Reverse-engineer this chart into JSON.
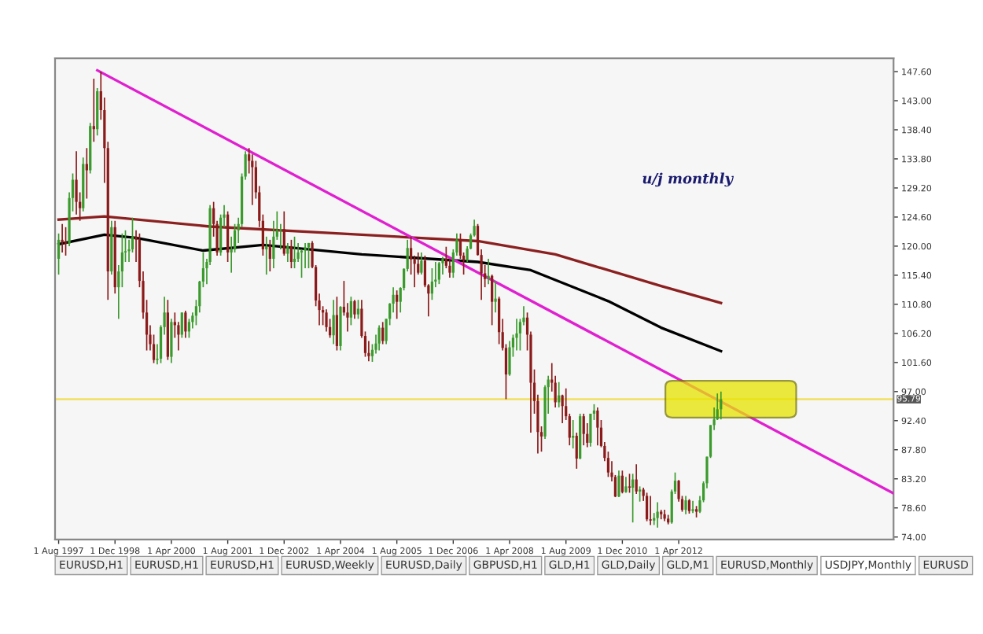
{
  "chart_data": {
    "type": "candlestick",
    "x": [
      "1997-08",
      "1997-09",
      "1997-10",
      "1997-11",
      "1997-12",
      "1998-01",
      "1998-02",
      "1998-03",
      "1998-04",
      "1998-05",
      "1998-06",
      "1998-07",
      "1998-08",
      "1998-09",
      "1998-10",
      "1998-11",
      "1998-12",
      "1999-01",
      "1999-02",
      "1999-03",
      "1999-04",
      "1999-05",
      "1999-06",
      "1999-07",
      "1999-08",
      "1999-09",
      "1999-10",
      "1999-11",
      "1999-12",
      "2000-01",
      "2000-02",
      "2000-03",
      "2000-04",
      "2000-05",
      "2000-06",
      "2000-07",
      "2000-08",
      "2000-09",
      "2000-10",
      "2000-11",
      "2000-12",
      "2001-01",
      "2001-02",
      "2001-03",
      "2001-04",
      "2001-05",
      "2001-06",
      "2001-07",
      "2001-08",
      "2001-09",
      "2001-10",
      "2001-11",
      "2001-12",
      "2002-01",
      "2002-02",
      "2002-03",
      "2002-04",
      "2002-05",
      "2002-06",
      "2002-07",
      "2002-08",
      "2002-09",
      "2002-10",
      "2002-11",
      "2002-12",
      "2003-01",
      "2003-02",
      "2003-03",
      "2003-04",
      "2003-05",
      "2003-06",
      "2003-07",
      "2003-08",
      "2003-09",
      "2003-10",
      "2003-11",
      "2003-12",
      "2004-01",
      "2004-02",
      "2004-03",
      "2004-04",
      "2004-05",
      "2004-06",
      "2004-07",
      "2004-08",
      "2004-09",
      "2004-10",
      "2004-11",
      "2004-12",
      "2005-01",
      "2005-02",
      "2005-03",
      "2005-04",
      "2005-05",
      "2005-06",
      "2005-07",
      "2005-08",
      "2005-09",
      "2005-10",
      "2005-11",
      "2005-12",
      "2006-01",
      "2006-02",
      "2006-03",
      "2006-04",
      "2006-05",
      "2006-06",
      "2006-07",
      "2006-08",
      "2006-09",
      "2006-10",
      "2006-11",
      "2006-12",
      "2007-01",
      "2007-02",
      "2007-03",
      "2007-04",
      "2007-05",
      "2007-06",
      "2007-07",
      "2007-08",
      "2007-09",
      "2007-10",
      "2007-11",
      "2007-12",
      "2008-01",
      "2008-02",
      "2008-03",
      "2008-04",
      "2008-05",
      "2008-06",
      "2008-07",
      "2008-08",
      "2008-09",
      "2008-10",
      "2008-11",
      "2008-12",
      "2009-01",
      "2009-02",
      "2009-03",
      "2009-04",
      "2009-05",
      "2009-06",
      "2009-07",
      "2009-08",
      "2009-09",
      "2009-10",
      "2009-11",
      "2009-12",
      "2010-01",
      "2010-02",
      "2010-03",
      "2010-04",
      "2010-05",
      "2010-06",
      "2010-07",
      "2010-08",
      "2010-09",
      "2010-10",
      "2010-11",
      "2010-12",
      "2011-01",
      "2011-02",
      "2011-03",
      "2011-04",
      "2011-05",
      "2011-06",
      "2011-07",
      "2011-08",
      "2011-09",
      "2011-10",
      "2011-11",
      "2011-12",
      "2012-01",
      "2012-02",
      "2012-03",
      "2012-04",
      "2012-05",
      "2012-06",
      "2012-07",
      "2012-08",
      "2012-09",
      "2012-10",
      "2012-11",
      "2012-12",
      "2013-01",
      "2013-02",
      "2013-03",
      "2013-04"
    ],
    "ohlc": [
      [
        118.0,
        122.0,
        115.5,
        121.0
      ],
      [
        121.0,
        123.5,
        119.0,
        120.6
      ],
      [
        120.6,
        123.0,
        118.5,
        120.4
      ],
      [
        120.4,
        128.5,
        120.0,
        127.6
      ],
      [
        127.6,
        131.5,
        125.5,
        130.5
      ],
      [
        130.5,
        135.0,
        125.0,
        127.0
      ],
      [
        127.0,
        128.5,
        124.0,
        126.0
      ],
      [
        126.0,
        134.0,
        125.5,
        133.0
      ],
      [
        133.0,
        135.5,
        127.5,
        132.0
      ],
      [
        132.0,
        139.5,
        131.5,
        139.0
      ],
      [
        139.0,
        146.5,
        136.5,
        138.5
      ],
      [
        138.5,
        145.0,
        137.5,
        144.5
      ],
      [
        144.5,
        147.6,
        140.0,
        141.5
      ],
      [
        141.5,
        143.5,
        130.0,
        135.5
      ],
      [
        135.5,
        136.5,
        111.5,
        116.0
      ],
      [
        116.0,
        124.0,
        115.5,
        123.0
      ],
      [
        123.0,
        124.0,
        112.5,
        113.5
      ],
      [
        113.5,
        117.0,
        108.5,
        116.0
      ],
      [
        116.0,
        122.0,
        113.5,
        119.0
      ],
      [
        119.0,
        122.5,
        117.5,
        119.2
      ],
      [
        119.2,
        121.0,
        117.5,
        119.5
      ],
      [
        119.5,
        124.5,
        119.0,
        121.5
      ],
      [
        121.5,
        122.5,
        117.5,
        121.0
      ],
      [
        121.0,
        122.0,
        113.5,
        114.5
      ],
      [
        114.5,
        116.0,
        108.5,
        109.5
      ],
      [
        109.5,
        111.5,
        103.5,
        106.0
      ],
      [
        106.0,
        107.5,
        103.5,
        104.5
      ],
      [
        104.5,
        106.0,
        101.5,
        102.0
      ],
      [
        102.0,
        104.5,
        101.3,
        102.2
      ],
      [
        102.2,
        107.5,
        101.5,
        107.2
      ],
      [
        107.2,
        112.0,
        106.0,
        109.5
      ],
      [
        109.5,
        111.5,
        102.0,
        102.5
      ],
      [
        102.5,
        108.5,
        101.5,
        108.0
      ],
      [
        108.0,
        109.5,
        105.5,
        107.5
      ],
      [
        107.5,
        108.0,
        103.5,
        106.0
      ],
      [
        106.0,
        109.5,
        105.5,
        109.5
      ],
      [
        109.5,
        109.8,
        105.5,
        106.5
      ],
      [
        106.5,
        108.5,
        105.5,
        108.0
      ],
      [
        108.0,
        109.5,
        107.0,
        109.0
      ],
      [
        109.0,
        111.5,
        107.5,
        110.5
      ],
      [
        110.5,
        114.5,
        109.5,
        114.4
      ],
      [
        114.4,
        119.0,
        113.5,
        116.5
      ],
      [
        116.5,
        118.0,
        114.0,
        117.5
      ],
      [
        117.5,
        126.5,
        117.0,
        126.0
      ],
      [
        126.0,
        127.0,
        121.5,
        123.5
      ],
      [
        123.5,
        124.0,
        118.5,
        119.0
      ],
      [
        119.0,
        125.0,
        118.5,
        124.5
      ],
      [
        124.5,
        126.5,
        123.0,
        125.0
      ],
      [
        125.0,
        125.5,
        117.5,
        119.0
      ],
      [
        119.0,
        121.5,
        115.8,
        119.5
      ],
      [
        119.5,
        123.5,
        119.0,
        122.5
      ],
      [
        122.5,
        124.5,
        120.5,
        123.5
      ],
      [
        123.5,
        131.5,
        123.0,
        131.0
      ],
      [
        131.0,
        135.0,
        130.5,
        134.5
      ],
      [
        134.5,
        135.5,
        131.5,
        133.5
      ],
      [
        133.5,
        134.5,
        126.5,
        132.5
      ],
      [
        132.5,
        133.5,
        127.5,
        128.5
      ],
      [
        128.5,
        129.5,
        123.0,
        124.0
      ],
      [
        124.0,
        125.0,
        118.5,
        119.5
      ],
      [
        119.5,
        121.5,
        115.5,
        120.0
      ],
      [
        120.0,
        121.0,
        116.0,
        118.0
      ],
      [
        118.0,
        124.0,
        116.5,
        121.5
      ],
      [
        121.5,
        125.5,
        121.0,
        122.5
      ],
      [
        122.5,
        123.5,
        119.5,
        122.7
      ],
      [
        122.7,
        125.5,
        118.5,
        118.8
      ],
      [
        118.8,
        120.5,
        117.5,
        120.0
      ],
      [
        120.0,
        121.0,
        116.5,
        117.5
      ],
      [
        117.5,
        121.5,
        116.5,
        118.0
      ],
      [
        118.0,
        120.5,
        117.5,
        119.0
      ],
      [
        119.0,
        119.5,
        115.0,
        119.3
      ],
      [
        119.3,
        120.5,
        116.5,
        119.8
      ],
      [
        119.8,
        120.5,
        116.5,
        120.5
      ],
      [
        120.5,
        120.8,
        116.5,
        116.7
      ],
      [
        116.7,
        117.0,
        110.5,
        111.4
      ],
      [
        111.4,
        112.5,
        107.5,
        109.9
      ],
      [
        109.9,
        110.5,
        107.5,
        109.5
      ],
      [
        109.5,
        110.0,
        106.5,
        107.2
      ],
      [
        107.2,
        108.5,
        105.5,
        105.9
      ],
      [
        105.9,
        111.5,
        104.5,
        109.1
      ],
      [
        109.1,
        112.0,
        103.5,
        104.2
      ],
      [
        104.2,
        110.5,
        103.5,
        110.4
      ],
      [
        110.4,
        114.5,
        109.0,
        109.5
      ],
      [
        109.5,
        111.0,
        106.5,
        108.7
      ],
      [
        108.7,
        112.0,
        107.5,
        111.3
      ],
      [
        111.3,
        111.5,
        108.5,
        109.2
      ],
      [
        109.2,
        111.5,
        108.5,
        110.1
      ],
      [
        110.1,
        111.5,
        105.5,
        105.8
      ],
      [
        105.8,
        106.5,
        102.5,
        103.1
      ],
      [
        103.1,
        105.0,
        101.8,
        102.6
      ],
      [
        102.6,
        104.5,
        101.7,
        103.6
      ],
      [
        103.6,
        106.0,
        103.0,
        104.6
      ],
      [
        104.6,
        107.5,
        103.5,
        107.1
      ],
      [
        107.1,
        108.0,
        104.5,
        105.0
      ],
      [
        105.0,
        108.5,
        104.5,
        108.5
      ],
      [
        108.5,
        111.0,
        107.5,
        110.9
      ],
      [
        110.9,
        113.5,
        109.5,
        112.3
      ],
      [
        112.3,
        113.0,
        108.5,
        111.2
      ],
      [
        111.2,
        113.5,
        109.5,
        113.4
      ],
      [
        113.4,
        116.5,
        113.0,
        116.4
      ],
      [
        116.4,
        121.0,
        116.0,
        119.7
      ],
      [
        119.7,
        121.5,
        115.5,
        117.9
      ],
      [
        117.9,
        118.5,
        113.5,
        117.2
      ],
      [
        117.2,
        119.0,
        115.5,
        115.8
      ],
      [
        115.8,
        119.0,
        115.5,
        117.7
      ],
      [
        117.7,
        118.5,
        113.5,
        113.8
      ],
      [
        113.8,
        114.0,
        108.9,
        112.5
      ],
      [
        112.5,
        116.5,
        111.5,
        114.4
      ],
      [
        114.4,
        117.5,
        113.5,
        114.7
      ],
      [
        114.7,
        117.5,
        114.0,
        117.3
      ],
      [
        117.3,
        118.3,
        115.5,
        118.0
      ],
      [
        118.0,
        119.9,
        116.5,
        116.9
      ],
      [
        116.9,
        118.0,
        115.0,
        115.8
      ],
      [
        115.8,
        119.5,
        115.0,
        119.0
      ],
      [
        119.0,
        122.0,
        118.5,
        121.0
      ],
      [
        121.0,
        122.0,
        118.0,
        118.5
      ],
      [
        118.5,
        119.0,
        115.5,
        117.8
      ],
      [
        117.8,
        120.0,
        117.5,
        119.6
      ],
      [
        119.6,
        122.0,
        119.5,
        121.7
      ],
      [
        121.7,
        124.2,
        121.5,
        123.2
      ],
      [
        123.2,
        123.5,
        118.5,
        118.6
      ],
      [
        118.6,
        119.5,
        111.5,
        115.7
      ],
      [
        115.7,
        117.0,
        113.5,
        114.8
      ],
      [
        114.8,
        118.0,
        114.0,
        115.3
      ],
      [
        115.3,
        115.5,
        107.5,
        111.2
      ],
      [
        111.2,
        114.5,
        109.5,
        111.7
      ],
      [
        111.7,
        112.0,
        104.5,
        106.4
      ],
      [
        106.4,
        108.5,
        103.5,
        103.9
      ],
      [
        103.9,
        104.5,
        95.8,
        99.7
      ],
      [
        99.7,
        105.0,
        99.5,
        104.0
      ],
      [
        104.0,
        106.0,
        102.5,
        105.5
      ],
      [
        105.5,
        108.5,
        103.5,
        106.2
      ],
      [
        106.2,
        108.5,
        103.5,
        108.0
      ],
      [
        108.0,
        110.5,
        107.5,
        108.7
      ],
      [
        108.7,
        109.5,
        103.5,
        106.0
      ],
      [
        106.0,
        106.5,
        90.5,
        98.4
      ],
      [
        98.4,
        100.5,
        93.5,
        95.5
      ],
      [
        95.5,
        96.5,
        87.2,
        90.6
      ],
      [
        90.6,
        91.5,
        87.5,
        89.9
      ],
      [
        89.9,
        98.0,
        89.5,
        97.7
      ],
      [
        97.7,
        99.5,
        93.5,
        98.9
      ],
      [
        98.9,
        101.5,
        97.0,
        98.4
      ],
      [
        98.4,
        99.5,
        94.5,
        95.3
      ],
      [
        95.3,
        98.5,
        94.5,
        96.4
      ],
      [
        96.4,
        96.5,
        92.0,
        94.7
      ],
      [
        94.7,
        97.5,
        92.5,
        93.1
      ],
      [
        93.1,
        93.5,
        88.5,
        89.7
      ],
      [
        89.7,
        92.5,
        88.0,
        90.0
      ],
      [
        90.0,
        90.5,
        84.8,
        86.4
      ],
      [
        86.4,
        93.5,
        86.3,
        93.1
      ],
      [
        93.1,
        93.5,
        88.5,
        90.3
      ],
      [
        90.3,
        92.0,
        88.2,
        88.9
      ],
      [
        88.9,
        93.5,
        88.3,
        93.5
      ],
      [
        93.5,
        95.0,
        92.5,
        94.0
      ],
      [
        94.0,
        94.5,
        88.5,
        91.3
      ],
      [
        91.3,
        92.5,
        88.2,
        88.4
      ],
      [
        88.4,
        89.0,
        86.0,
        86.5
      ],
      [
        86.5,
        87.5,
        83.5,
        84.2
      ],
      [
        84.2,
        86.0,
        82.8,
        83.5
      ],
      [
        83.5,
        83.8,
        80.3,
        80.4
      ],
      [
        80.4,
        84.5,
        80.3,
        83.7
      ],
      [
        83.7,
        84.5,
        80.9,
        81.1
      ],
      [
        81.1,
        83.5,
        81.0,
        82.0
      ],
      [
        82.0,
        84.0,
        81.0,
        81.8
      ],
      [
        81.8,
        84.0,
        76.3,
        83.1
      ],
      [
        83.1,
        85.5,
        80.8,
        81.2
      ],
      [
        81.2,
        82.0,
        79.6,
        81.5
      ],
      [
        81.5,
        81.8,
        79.7,
        80.5
      ],
      [
        80.5,
        81.0,
        76.5,
        76.8
      ],
      [
        76.8,
        80.5,
        75.9,
        76.6
      ],
      [
        76.6,
        77.8,
        75.9,
        77.0
      ],
      [
        77.0,
        79.5,
        75.5,
        78.0
      ],
      [
        78.0,
        78.3,
        76.8,
        77.6
      ],
      [
        77.6,
        78.3,
        76.5,
        76.9
      ],
      [
        76.9,
        77.5,
        76.0,
        76.3
      ],
      [
        76.3,
        81.5,
        76.1,
        81.2
      ],
      [
        81.2,
        84.2,
        80.8,
        82.9
      ],
      [
        82.9,
        83.0,
        79.6,
        80.0
      ],
      [
        80.0,
        80.5,
        78.0,
        78.3
      ],
      [
        78.3,
        80.5,
        77.6,
        79.8
      ],
      [
        79.8,
        80.0,
        77.7,
        78.1
      ],
      [
        78.1,
        79.7,
        77.8,
        78.4
      ],
      [
        78.4,
        78.9,
        77.1,
        78.0
      ],
      [
        78.0,
        80.5,
        77.8,
        79.8
      ],
      [
        79.8,
        82.8,
        79.5,
        82.5
      ],
      [
        82.5,
        86.7,
        81.7,
        86.7
      ],
      [
        86.7,
        91.7,
        86.5,
        91.7
      ],
      [
        91.7,
        94.5,
        90.9,
        92.6
      ],
      [
        92.6,
        96.7,
        92.5,
        94.2
      ],
      [
        94.2,
        97.0,
        92.6,
        95.79
      ]
    ],
    "series": [
      {
        "type": "line",
        "color": "#8b2020",
        "x": [
          "1997-08",
          "1998-09",
          "2001-03",
          "2004-10",
          "2007-07",
          "2009-05",
          "2011-11",
          "2013-04"
        ],
        "values": [
          124.2,
          124.7,
          123.1,
          121.8,
          120.8,
          118.7,
          113.7,
          111.0
        ]
      },
      {
        "type": "line",
        "color": "#000000",
        "x": [
          "1997-08",
          "1998-09",
          "1999-06",
          "2001-01",
          "2002-06",
          "2004-10",
          "2007-07",
          "2008-10",
          "2010-08",
          "2011-11",
          "2013-04"
        ],
        "values": [
          120.3,
          121.8,
          121.3,
          119.3,
          120.2,
          118.7,
          117.5,
          116.2,
          111.3,
          107.1,
          103.4
        ]
      },
      {
        "type": "line",
        "color": "#e020d0",
        "x": [
          "1998-07",
          "2017-05"
        ],
        "values": [
          147.8,
          80.9
        ]
      }
    ],
    "ref_lines": [
      {
        "axis": "y",
        "value": 95.79,
        "label": "95.79",
        "color": "#f0e060"
      }
    ],
    "annotations": [
      "u/j monthly",
      "EURUSD,H1",
      "EURUSD,H1",
      "EURUSD,H1",
      "EURUSD,Weekly",
      "EURUSD,Daily",
      "GBPUSD,H1",
      "GLD,H1",
      "GLD,Daily",
      "GLD,M1",
      "EURUSD,Monthly",
      "USDJPY,Monthly",
      "EURUSD"
    ],
    "xlim": [
      "1997-07",
      "2017-05"
    ],
    "xticks": [
      {
        "value": "1997-08",
        "label": "1 Aug 1997"
      },
      {
        "value": "1998-12",
        "label": "1 Dec 1998"
      },
      {
        "value": "2000-04",
        "label": "1 Apr 2000"
      },
      {
        "value": "2001-08",
        "label": "1 Aug 2001"
      },
      {
        "value": "2002-12",
        "label": "1 Dec 2002"
      },
      {
        "value": "2004-04",
        "label": "1 Apr 2004"
      },
      {
        "value": "2005-08",
        "label": "1 Aug 2005"
      },
      {
        "value": "2006-12",
        "label": "1 Dec 2006"
      },
      {
        "value": "2008-04",
        "label": "1 Apr 2008"
      },
      {
        "value": "2009-08",
        "label": "1 Aug 2009"
      },
      {
        "value": "2010-12",
        "label": "1 Dec 2010"
      },
      {
        "value": "2012-04",
        "label": "1 Apr 2012"
      }
    ],
    "ylim": [
      73.6,
      149.7
    ],
    "yticks": [
      {
        "value": 147.6,
        "label": "147.60"
      },
      {
        "value": 143,
        "label": "143.00"
      },
      {
        "value": 138.4,
        "label": "138.40"
      },
      {
        "value": 133.8,
        "label": "133.80"
      },
      {
        "value": 129.2,
        "label": "129.20"
      },
      {
        "value": 124.6,
        "label": "124.60"
      },
      {
        "value": 120,
        "label": "120.00"
      },
      {
        "value": 115.4,
        "label": "115.40"
      },
      {
        "value": 110.8,
        "label": "110.80"
      },
      {
        "value": 106.2,
        "label": "106.20"
      },
      {
        "value": 101.6,
        "label": "101.60"
      },
      {
        "value": 97,
        "label": "97.00"
      },
      {
        "value": 92.4,
        "label": "92.40"
      },
      {
        "value": 87.8,
        "label": "87.80"
      },
      {
        "value": 83.2,
        "label": "83.20"
      },
      {
        "value": 78.6,
        "label": "78.60"
      },
      {
        "value": 74,
        "label": "74.00"
      }
    ],
    "grid": false
  }
}
